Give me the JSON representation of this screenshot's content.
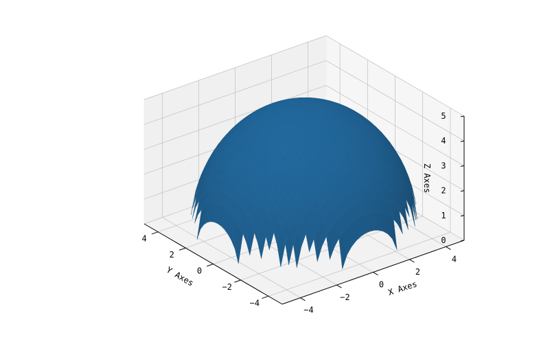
{
  "chart_data": {
    "type": "surface3d",
    "title": "",
    "xlabel": "X Axes",
    "ylabel": "Y Axes",
    "zlabel": "Z Axes",
    "x_ticks": [
      "−4",
      "−2",
      "0",
      "2",
      "4"
    ],
    "y_ticks": [
      "−4",
      "−2",
      "0",
      "2",
      "4"
    ],
    "z_ticks": [
      "0",
      "1",
      "2",
      "3",
      "4",
      "5"
    ],
    "xlim": [
      -5,
      5
    ],
    "ylim": [
      -5,
      5
    ],
    "zlim": [
      0,
      5
    ],
    "surface": {
      "equation": "z = sqrt(25 - x^2 - y^2)",
      "radius": 5,
      "x_range": [
        -5,
        5
      ],
      "y_range": [
        -5,
        5
      ],
      "color": "#1f5f8f"
    },
    "grid": true,
    "pane_color": "#f2f2f2"
  }
}
